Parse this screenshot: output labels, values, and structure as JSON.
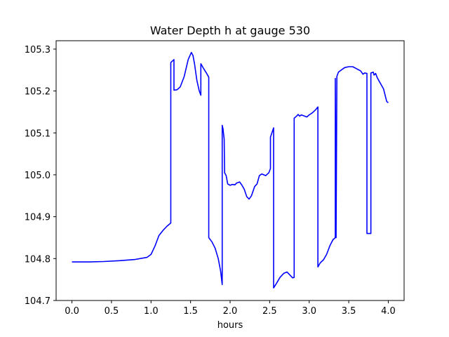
{
  "chart_data": {
    "type": "line",
    "title": "Water Depth h at gauge 530",
    "xlabel": "hours",
    "ylabel": "",
    "xlim": [
      -0.2,
      4.2
    ],
    "ylim": [
      104.7,
      105.32
    ],
    "xticks": [
      0.0,
      0.5,
      1.0,
      1.5,
      2.0,
      2.5,
      3.0,
      3.5,
      4.0
    ],
    "xtick_labels": [
      "0.0",
      "0.5",
      "1.0",
      "1.5",
      "2.0",
      "2.5",
      "3.0",
      "3.5",
      "4.0"
    ],
    "yticks": [
      104.7,
      104.8,
      104.9,
      105.0,
      105.1,
      105.2,
      105.3
    ],
    "ytick_labels": [
      "104.7",
      "104.8",
      "104.9",
      "105.0",
      "105.1",
      "105.2",
      "105.3"
    ],
    "grid": false,
    "series": [
      {
        "color": "#0000ff",
        "points": [
          [
            0.0,
            104.792
          ],
          [
            0.2,
            104.792
          ],
          [
            0.4,
            104.793
          ],
          [
            0.6,
            104.795
          ],
          [
            0.8,
            104.798
          ],
          [
            0.95,
            104.803
          ],
          [
            1.0,
            104.81
          ],
          [
            1.05,
            104.83
          ],
          [
            1.1,
            104.855
          ],
          [
            1.15,
            104.867
          ],
          [
            1.2,
            104.877
          ],
          [
            1.25,
            104.885
          ],
          [
            1.25,
            105.268
          ],
          [
            1.29,
            105.275
          ],
          [
            1.29,
            105.202
          ],
          [
            1.33,
            105.203
          ],
          [
            1.37,
            105.21
          ],
          [
            1.42,
            105.235
          ],
          [
            1.47,
            105.275
          ],
          [
            1.51,
            105.292
          ],
          [
            1.53,
            105.285
          ],
          [
            1.55,
            105.265
          ],
          [
            1.58,
            105.225
          ],
          [
            1.61,
            105.2
          ],
          [
            1.63,
            105.19
          ],
          [
            1.63,
            105.265
          ],
          [
            1.66,
            105.255
          ],
          [
            1.7,
            105.243
          ],
          [
            1.73,
            105.233
          ],
          [
            1.73,
            104.85
          ],
          [
            1.77,
            104.84
          ],
          [
            1.81,
            104.825
          ],
          [
            1.85,
            104.8
          ],
          [
            1.88,
            104.77
          ],
          [
            1.9,
            104.738
          ],
          [
            1.9,
            105.118
          ],
          [
            1.91,
            105.11
          ],
          [
            1.925,
            105.085
          ],
          [
            1.93,
            105.005
          ],
          [
            1.95,
            104.998
          ],
          [
            1.97,
            104.978
          ],
          [
            2.0,
            104.975
          ],
          [
            2.03,
            104.977
          ],
          [
            2.06,
            104.976
          ],
          [
            2.08,
            104.98
          ],
          [
            2.12,
            104.983
          ],
          [
            2.15,
            104.975
          ],
          [
            2.18,
            104.965
          ],
          [
            2.21,
            104.948
          ],
          [
            2.24,
            104.942
          ],
          [
            2.27,
            104.95
          ],
          [
            2.31,
            104.972
          ],
          [
            2.34,
            104.978
          ],
          [
            2.37,
            104.998
          ],
          [
            2.4,
            105.002
          ],
          [
            2.45,
            104.998
          ],
          [
            2.49,
            105.005
          ],
          [
            2.51,
            105.015
          ],
          [
            2.51,
            105.09
          ],
          [
            2.55,
            105.112
          ],
          [
            2.55,
            104.73
          ],
          [
            2.59,
            104.742
          ],
          [
            2.63,
            104.755
          ],
          [
            2.68,
            104.765
          ],
          [
            2.72,
            104.768
          ],
          [
            2.76,
            104.76
          ],
          [
            2.79,
            104.754
          ],
          [
            2.81,
            104.755
          ],
          [
            2.81,
            105.135
          ],
          [
            2.84,
            105.14
          ],
          [
            2.86,
            105.144
          ],
          [
            2.88,
            105.14
          ],
          [
            2.9,
            105.143
          ],
          [
            2.93,
            105.141
          ],
          [
            2.97,
            105.138
          ],
          [
            3.0,
            105.143
          ],
          [
            3.04,
            105.148
          ],
          [
            3.08,
            105.155
          ],
          [
            3.11,
            105.162
          ],
          [
            3.11,
            104.78
          ],
          [
            3.14,
            104.79
          ],
          [
            3.18,
            104.797
          ],
          [
            3.22,
            104.81
          ],
          [
            3.26,
            104.83
          ],
          [
            3.3,
            104.845
          ],
          [
            3.33,
            104.85
          ],
          [
            3.33,
            105.23
          ],
          [
            3.34,
            104.85
          ],
          [
            3.35,
            105.235
          ],
          [
            3.37,
            105.245
          ],
          [
            3.39,
            105.248
          ],
          [
            3.42,
            105.252
          ],
          [
            3.45,
            105.256
          ],
          [
            3.5,
            105.258
          ],
          [
            3.55,
            105.258
          ],
          [
            3.6,
            105.253
          ],
          [
            3.65,
            105.248
          ],
          [
            3.68,
            105.24
          ],
          [
            3.7,
            105.243
          ],
          [
            3.73,
            105.242
          ],
          [
            3.73,
            104.86
          ],
          [
            3.78,
            104.86
          ],
          [
            3.78,
            105.243
          ],
          [
            3.81,
            105.245
          ],
          [
            3.82,
            105.238
          ],
          [
            3.84,
            105.242
          ],
          [
            3.86,
            105.232
          ],
          [
            3.88,
            105.225
          ],
          [
            3.91,
            105.215
          ],
          [
            3.94,
            105.205
          ],
          [
            3.96,
            105.19
          ],
          [
            3.98,
            105.175
          ],
          [
            4.0,
            105.172
          ]
        ]
      }
    ]
  }
}
